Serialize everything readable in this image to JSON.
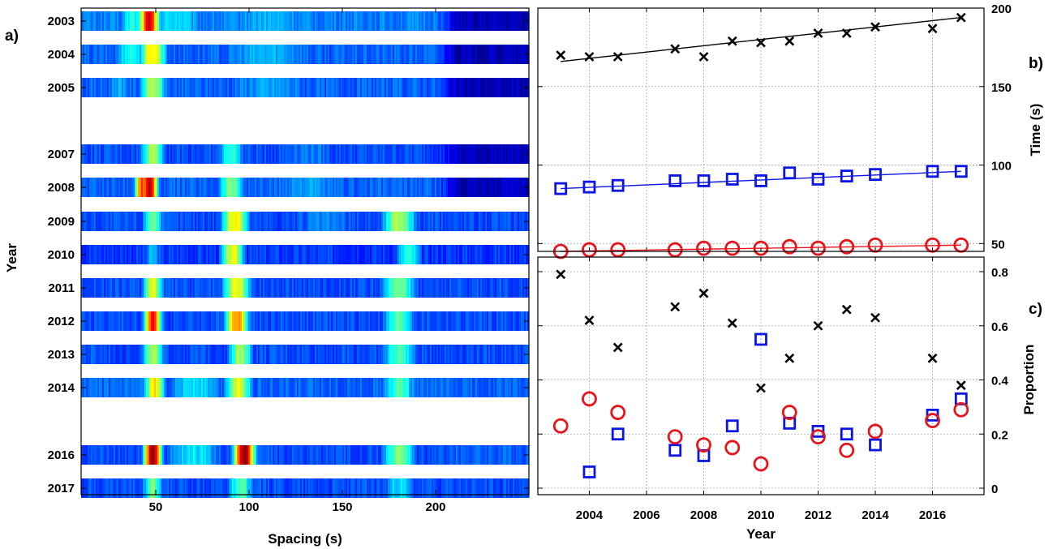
{
  "colors": {
    "black_series": "#000000",
    "blue_series": "#0b16e6",
    "red_series": "#e8141c",
    "grid": "#a8a8a8",
    "colormap": "jet"
  },
  "chart_data": [
    {
      "type": "heatmap",
      "panel_label": "a)",
      "xlabel": "Spacing (s)",
      "ylabel": "Year",
      "xlim": [
        10,
        250
      ],
      "x_ticks": [
        50,
        100,
        150,
        200
      ],
      "y_ticks": [
        "2003",
        "2004",
        "2005",
        "2007",
        "2008",
        "2009",
        "2010",
        "2011",
        "2012",
        "2013",
        "2014",
        "2016",
        "2017"
      ],
      "rows": [
        {
          "year": "2003",
          "peaks": [
            {
              "x": 46,
              "w": 6,
              "v": 0.9
            },
            {
              "x": 37,
              "w": 8,
              "v": 0.4
            },
            {
              "x": 60,
              "w": 20,
              "v": 0.35
            },
            {
              "x": 110,
              "w": 40,
              "v": 0.3
            }
          ],
          "base": 0.25,
          "tail": 0.05
        },
        {
          "year": "2004",
          "peaks": [
            {
              "x": 48,
              "w": 8,
              "v": 0.65
            },
            {
              "x": 36,
              "w": 10,
              "v": 0.4
            },
            {
              "x": 110,
              "w": 40,
              "v": 0.3
            }
          ],
          "base": 0.22,
          "tail": 0.05
        },
        {
          "year": "2005",
          "peaks": [
            {
              "x": 48,
              "w": 8,
              "v": 0.55
            },
            {
              "x": 30,
              "w": 10,
              "v": 0.3
            },
            {
              "x": 110,
              "w": 40,
              "v": 0.28
            }
          ],
          "base": 0.22,
          "tail": 0.05
        },
        {
          "year": "2007",
          "peaks": [
            {
              "x": 48,
              "w": 7,
              "v": 0.55
            },
            {
              "x": 90,
              "w": 8,
              "v": 0.42
            },
            {
              "x": 130,
              "w": 30,
              "v": 0.25
            }
          ],
          "base": 0.2,
          "tail": 0.06
        },
        {
          "year": "2008",
          "peaks": [
            {
              "x": 46,
              "w": 5,
              "v": 0.95
            },
            {
              "x": 42,
              "w": 4,
              "v": 0.8
            },
            {
              "x": 90,
              "w": 8,
              "v": 0.5
            },
            {
              "x": 130,
              "w": 30,
              "v": 0.28
            }
          ],
          "base": 0.22,
          "tail": 0.06
        },
        {
          "year": "2009",
          "peaks": [
            {
              "x": 48,
              "w": 6,
              "v": 0.5
            },
            {
              "x": 92,
              "w": 8,
              "v": 0.65
            },
            {
              "x": 180,
              "w": 10,
              "v": 0.55
            },
            {
              "x": 140,
              "w": 30,
              "v": 0.25
            }
          ],
          "base": 0.2,
          "tail": 0.2
        },
        {
          "year": "2010",
          "peaks": [
            {
              "x": 91,
              "w": 7,
              "v": 0.6
            },
            {
              "x": 48,
              "w": 6,
              "v": 0.3
            },
            {
              "x": 185,
              "w": 8,
              "v": 0.4
            }
          ],
          "base": 0.18,
          "tail": 0.18
        },
        {
          "year": "2011",
          "peaks": [
            {
              "x": 48,
              "w": 6,
              "v": 0.6
            },
            {
              "x": 93,
              "w": 8,
              "v": 0.62
            },
            {
              "x": 180,
              "w": 10,
              "v": 0.5
            }
          ],
          "base": 0.2,
          "tail": 0.2
        },
        {
          "year": "2012",
          "peaks": [
            {
              "x": 48,
              "w": 5,
              "v": 0.85
            },
            {
              "x": 93,
              "w": 7,
              "v": 0.75
            },
            {
              "x": 180,
              "w": 10,
              "v": 0.45
            }
          ],
          "base": 0.2,
          "tail": 0.2
        },
        {
          "year": "2013",
          "peaks": [
            {
              "x": 48,
              "w": 6,
              "v": 0.55
            },
            {
              "x": 95,
              "w": 7,
              "v": 0.55
            },
            {
              "x": 180,
              "w": 10,
              "v": 0.45
            }
          ],
          "base": 0.2,
          "tail": 0.2
        },
        {
          "year": "2014",
          "peaks": [
            {
              "x": 49,
              "w": 6,
              "v": 0.65
            },
            {
              "x": 94,
              "w": 8,
              "v": 0.6
            },
            {
              "x": 70,
              "w": 20,
              "v": 0.35
            },
            {
              "x": 180,
              "w": 10,
              "v": 0.45
            }
          ],
          "base": 0.22,
          "tail": 0.22
        },
        {
          "year": "2016",
          "peaks": [
            {
              "x": 48,
              "w": 5,
              "v": 1.0
            },
            {
              "x": 97,
              "w": 6,
              "v": 1.0
            },
            {
              "x": 180,
              "w": 10,
              "v": 0.5
            },
            {
              "x": 70,
              "w": 20,
              "v": 0.35
            }
          ],
          "base": 0.2,
          "tail": 0.22
        },
        {
          "year": "2017",
          "peaks": [
            {
              "x": 48,
              "w": 6,
              "v": 0.5
            },
            {
              "x": 95,
              "w": 8,
              "v": 0.45
            },
            {
              "x": 180,
              "w": 10,
              "v": 0.35
            }
          ],
          "base": 0.2,
          "tail": 0.2
        }
      ]
    },
    {
      "type": "scatter",
      "panel_label": "b)",
      "xlabel": "",
      "ylabel": "Time (s)",
      "xlim": [
        2002.2,
        2017.8
      ],
      "ylim": [
        45,
        200
      ],
      "y_ticks": [
        50,
        100,
        150,
        200
      ],
      "grid": true,
      "series": [
        {
          "marker": "x",
          "color": "#000000",
          "x": [
            2003,
            2004,
            2005,
            2007,
            2008,
            2009,
            2010,
            2011,
            2012,
            2013,
            2014,
            2016,
            2017
          ],
          "y": [
            170,
            169,
            169,
            174,
            169,
            179,
            178,
            179,
            184,
            184,
            188,
            187,
            194
          ],
          "fit": [
            [
              2003,
              166
            ],
            [
              2017,
              194
            ]
          ]
        },
        {
          "marker": "square",
          "color": "#0b16e6",
          "x": [
            2003,
            2004,
            2005,
            2007,
            2008,
            2009,
            2010,
            2011,
            2012,
            2013,
            2014,
            2016,
            2017
          ],
          "y": [
            85,
            86,
            87,
            90,
            90,
            91,
            90,
            95,
            91,
            93,
            94,
            96,
            96
          ],
          "fit": [
            [
              2003,
              85
            ],
            [
              2017,
              96
            ]
          ]
        },
        {
          "marker": "circle",
          "color": "#e8141c",
          "x": [
            2003,
            2004,
            2005,
            2007,
            2008,
            2009,
            2010,
            2011,
            2012,
            2013,
            2014,
            2016,
            2017
          ],
          "y": [
            45,
            46,
            46,
            46,
            47,
            47,
            47,
            48,
            47,
            48,
            49,
            49,
            49
          ],
          "fit": [
            [
              2003,
              45
            ],
            [
              2017,
              49
            ]
          ]
        }
      ]
    },
    {
      "type": "scatter",
      "panel_label": "c)",
      "xlabel": "Year",
      "ylabel": "Proportion",
      "xlim": [
        2002.2,
        2017.8
      ],
      "ylim": [
        0,
        0.8
      ],
      "x_ticks": [
        2004,
        2006,
        2008,
        2010,
        2012,
        2014,
        2016
      ],
      "y_ticks": [
        0,
        0.2,
        0.4,
        0.6,
        0.8
      ],
      "grid": true,
      "series": [
        {
          "marker": "x",
          "color": "#000000",
          "x": [
            2003,
            2004,
            2005,
            2007,
            2008,
            2009,
            2010,
            2011,
            2012,
            2013,
            2014,
            2016,
            2017
          ],
          "y": [
            0.79,
            0.62,
            0.52,
            0.67,
            0.72,
            0.61,
            0.37,
            0.48,
            0.6,
            0.66,
            0.63,
            0.48,
            0.38
          ]
        },
        {
          "marker": "square",
          "color": "#0b16e6",
          "x": [
            2004,
            2005,
            2007,
            2008,
            2009,
            2010,
            2011,
            2012,
            2013,
            2014,
            2016,
            2017
          ],
          "y": [
            0.06,
            0.2,
            0.14,
            0.12,
            0.23,
            0.55,
            0.24,
            0.21,
            0.2,
            0.16,
            0.27,
            0.33
          ]
        },
        {
          "marker": "circle",
          "color": "#e8141c",
          "x": [
            2003,
            2004,
            2005,
            2007,
            2008,
            2009,
            2010,
            2011,
            2012,
            2013,
            2014,
            2016,
            2017
          ],
          "y": [
            0.23,
            0.33,
            0.28,
            0.19,
            0.16,
            0.15,
            0.09,
            0.28,
            0.19,
            0.14,
            0.21,
            0.25,
            0.29
          ]
        }
      ]
    }
  ]
}
